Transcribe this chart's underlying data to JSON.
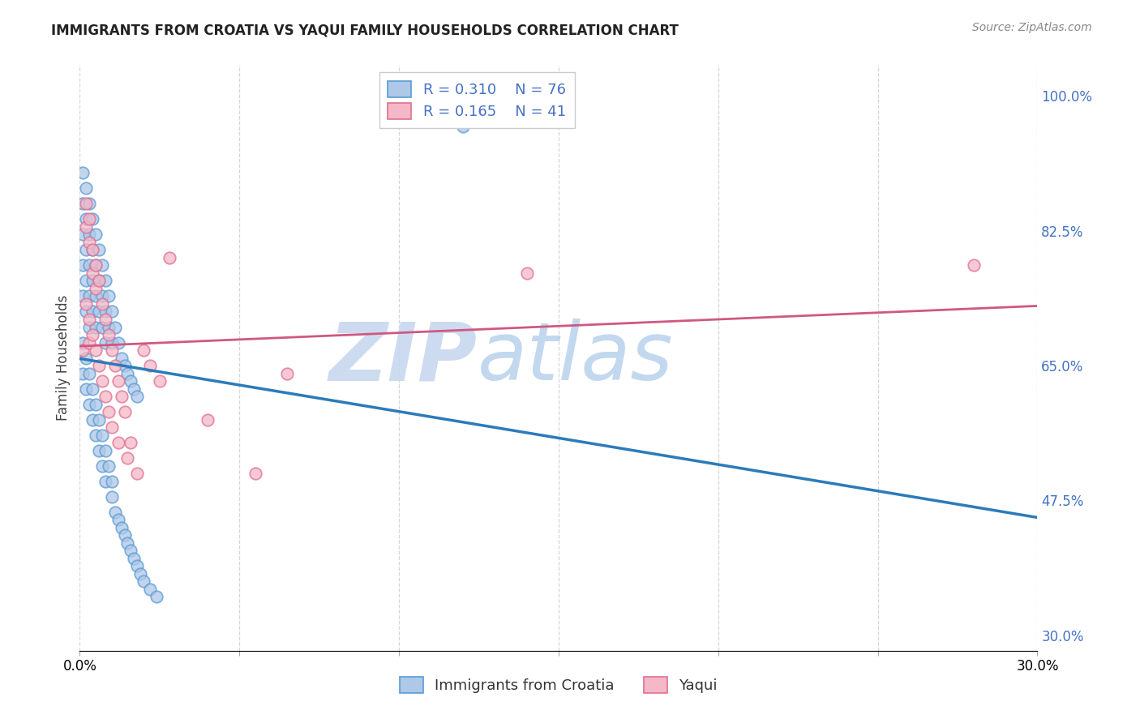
{
  "title": "IMMIGRANTS FROM CROATIA VS YAQUI FAMILY HOUSEHOLDS CORRELATION CHART",
  "source": "Source: ZipAtlas.com",
  "ylabel": "Family Households",
  "xlim": [
    0.0,
    0.3
  ],
  "ylim": [
    0.28,
    1.04
  ],
  "xtick_vals": [
    0.0,
    0.05,
    0.1,
    0.15,
    0.2,
    0.25,
    0.3
  ],
  "xticklabels": [
    "0.0%",
    "",
    "",
    "",
    "",
    "",
    "30.0%"
  ],
  "ytick_vals": [
    0.3,
    0.475,
    0.65,
    0.825,
    1.0
  ],
  "yticklabels": [
    "30.0%",
    "47.5%",
    "65.0%",
    "82.5%",
    "100.0%"
  ],
  "legend_r1": "R = 0.310",
  "legend_n1": "N = 76",
  "legend_r2": "R = 0.165",
  "legend_n2": "N = 41",
  "blue_face": "#aec8e8",
  "blue_edge": "#5b9bd5",
  "pink_face": "#f4b8c8",
  "pink_edge": "#e07090",
  "blue_line": "#2b7bba",
  "pink_line": "#d05880",
  "right_axis_color": "#4472C4",
  "watermark_zip_color": "#c8d8f0",
  "watermark_atlas_color": "#a8c8e8",
  "title_color": "#222222",
  "source_color": "#888888",
  "ylabel_color": "#444444",
  "grid_color": "#cccccc",
  "blue_x": [
    0.001,
    0.001,
    0.001,
    0.001,
    0.001,
    0.002,
    0.002,
    0.002,
    0.002,
    0.002,
    0.003,
    0.003,
    0.003,
    0.003,
    0.003,
    0.004,
    0.004,
    0.004,
    0.004,
    0.005,
    0.005,
    0.005,
    0.005,
    0.006,
    0.006,
    0.006,
    0.007,
    0.007,
    0.007,
    0.008,
    0.008,
    0.008,
    0.009,
    0.009,
    0.01,
    0.01,
    0.011,
    0.012,
    0.013,
    0.014,
    0.015,
    0.016,
    0.017,
    0.018,
    0.001,
    0.001,
    0.002,
    0.002,
    0.003,
    0.003,
    0.004,
    0.004,
    0.005,
    0.005,
    0.006,
    0.006,
    0.007,
    0.007,
    0.008,
    0.008,
    0.009,
    0.01,
    0.01,
    0.011,
    0.012,
    0.013,
    0.014,
    0.015,
    0.016,
    0.017,
    0.018,
    0.019,
    0.02,
    0.022,
    0.024,
    0.12
  ],
  "blue_y": [
    0.9,
    0.86,
    0.82,
    0.78,
    0.74,
    0.88,
    0.84,
    0.8,
    0.76,
    0.72,
    0.86,
    0.82,
    0.78,
    0.74,
    0.7,
    0.84,
    0.8,
    0.76,
    0.72,
    0.82,
    0.78,
    0.74,
    0.7,
    0.8,
    0.76,
    0.72,
    0.78,
    0.74,
    0.7,
    0.76,
    0.72,
    0.68,
    0.74,
    0.7,
    0.72,
    0.68,
    0.7,
    0.68,
    0.66,
    0.65,
    0.64,
    0.63,
    0.62,
    0.61,
    0.68,
    0.64,
    0.66,
    0.62,
    0.64,
    0.6,
    0.62,
    0.58,
    0.6,
    0.56,
    0.58,
    0.54,
    0.56,
    0.52,
    0.54,
    0.5,
    0.52,
    0.5,
    0.48,
    0.46,
    0.45,
    0.44,
    0.43,
    0.42,
    0.41,
    0.4,
    0.39,
    0.38,
    0.37,
    0.36,
    0.35,
    0.96
  ],
  "pink_x": [
    0.001,
    0.002,
    0.002,
    0.003,
    0.003,
    0.004,
    0.004,
    0.005,
    0.005,
    0.006,
    0.007,
    0.008,
    0.009,
    0.01,
    0.011,
    0.012,
    0.013,
    0.014,
    0.016,
    0.018,
    0.02,
    0.022,
    0.025,
    0.028,
    0.002,
    0.003,
    0.003,
    0.004,
    0.005,
    0.006,
    0.007,
    0.008,
    0.009,
    0.01,
    0.012,
    0.015,
    0.04,
    0.055,
    0.065,
    0.14,
    0.28
  ],
  "pink_y": [
    0.67,
    0.86,
    0.83,
    0.84,
    0.81,
    0.8,
    0.77,
    0.78,
    0.75,
    0.76,
    0.73,
    0.71,
    0.69,
    0.67,
    0.65,
    0.63,
    0.61,
    0.59,
    0.55,
    0.51,
    0.67,
    0.65,
    0.63,
    0.79,
    0.73,
    0.71,
    0.68,
    0.69,
    0.67,
    0.65,
    0.63,
    0.61,
    0.59,
    0.57,
    0.55,
    0.53,
    0.58,
    0.51,
    0.64,
    0.77,
    0.78
  ]
}
